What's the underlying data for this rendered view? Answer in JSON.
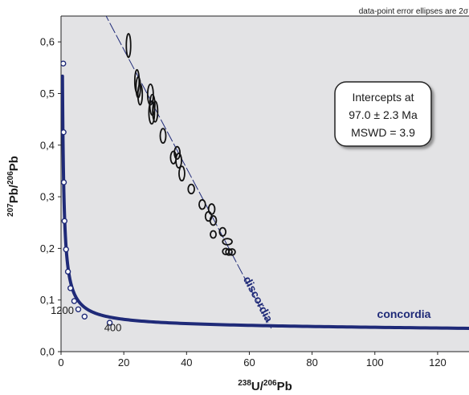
{
  "chart_data": {
    "type": "scatter",
    "note": "data-point error ellipses are 2σ",
    "xlabel_parts": {
      "sup1": "238",
      "base1": "U/",
      "sup2": "206",
      "base2": "Pb"
    },
    "ylabel_parts": {
      "sup1": "207",
      "base1": "Pb/",
      "sup2": "206",
      "base2": "Pb"
    },
    "xlim": [
      0,
      130
    ],
    "ylim": [
      0,
      0.65
    ],
    "x_ticks": [
      {
        "value": 0,
        "label": "0"
      },
      {
        "value": 20,
        "label": "20"
      },
      {
        "value": 40,
        "label": "40"
      },
      {
        "value": 60,
        "label": "60"
      },
      {
        "value": 80,
        "label": "80"
      },
      {
        "value": 100,
        "label": "100"
      },
      {
        "value": 120,
        "label": "120"
      }
    ],
    "y_ticks": [
      {
        "value": 0.0,
        "label": "0,0"
      },
      {
        "value": 0.1,
        "label": "0,1"
      },
      {
        "value": 0.2,
        "label": "0,2"
      },
      {
        "value": 0.3,
        "label": "0,3"
      },
      {
        "value": 0.4,
        "label": "0,4"
      },
      {
        "value": 0.5,
        "label": "0,5"
      },
      {
        "value": 0.6,
        "label": "0,6"
      }
    ],
    "intercept_box": {
      "line1": "Intercepts at",
      "line2": "97.0 ± 2.3 Ma",
      "line3": "MSWD = 3.9"
    },
    "concordia": {
      "label": "concordia",
      "color": "#1f2a78",
      "markers": [
        {
          "x": 0.7,
          "y": 0.558
        },
        {
          "x": 0.8,
          "y": 0.425
        },
        {
          "x": 0.9,
          "y": 0.328
        },
        {
          "x": 1.1,
          "y": 0.253
        },
        {
          "x": 1.6,
          "y": 0.198
        },
        {
          "x": 2.2,
          "y": 0.155
        },
        {
          "x": 3.0,
          "y": 0.123
        },
        {
          "x": 4.2,
          "y": 0.098
        },
        {
          "x": 5.5,
          "y": 0.082
        },
        {
          "x": 7.5,
          "y": 0.068
        },
        {
          "x": 15.5,
          "y": 0.056
        }
      ],
      "age_labels": [
        {
          "label": "1200",
          "x": 0.5,
          "y": 0.073
        },
        {
          "label": "400",
          "x": 15.5,
          "y": 0.04
        }
      ]
    },
    "discordia": {
      "label": "discordia",
      "color": "#1f2a78",
      "x1": 13.5,
      "y1": 0.66,
      "x2": 67,
      "y2": 0.045
    },
    "ellipses": [
      {
        "x": 21.5,
        "y": 0.593,
        "rx": 0.7,
        "ry": 0.023
      },
      {
        "x": 24.2,
        "y": 0.524,
        "rx": 0.7,
        "ry": 0.022
      },
      {
        "x": 24.6,
        "y": 0.512,
        "rx": 0.7,
        "ry": 0.02
      },
      {
        "x": 25.2,
        "y": 0.498,
        "rx": 0.7,
        "ry": 0.02
      },
      {
        "x": 28.5,
        "y": 0.498,
        "rx": 0.9,
        "ry": 0.02
      },
      {
        "x": 29.1,
        "y": 0.478,
        "rx": 0.8,
        "ry": 0.02
      },
      {
        "x": 28.9,
        "y": 0.463,
        "rx": 0.9,
        "ry": 0.022
      },
      {
        "x": 30.0,
        "y": 0.465,
        "rx": 0.8,
        "ry": 0.02
      },
      {
        "x": 32.5,
        "y": 0.418,
        "rx": 0.9,
        "ry": 0.014
      },
      {
        "x": 35.8,
        "y": 0.376,
        "rx": 0.9,
        "ry": 0.012
      },
      {
        "x": 37.0,
        "y": 0.385,
        "rx": 0.9,
        "ry": 0.012
      },
      {
        "x": 37.5,
        "y": 0.37,
        "rx": 0.9,
        "ry": 0.014
      },
      {
        "x": 38.5,
        "y": 0.345,
        "rx": 0.9,
        "ry": 0.014
      },
      {
        "x": 41.5,
        "y": 0.315,
        "rx": 1.0,
        "ry": 0.009
      },
      {
        "x": 45.0,
        "y": 0.285,
        "rx": 1.0,
        "ry": 0.009
      },
      {
        "x": 47.0,
        "y": 0.262,
        "rx": 1.0,
        "ry": 0.009
      },
      {
        "x": 48.0,
        "y": 0.276,
        "rx": 1.0,
        "ry": 0.01
      },
      {
        "x": 48.5,
        "y": 0.254,
        "rx": 1.0,
        "ry": 0.009
      },
      {
        "x": 48.5,
        "y": 0.227,
        "rx": 0.9,
        "ry": 0.007
      },
      {
        "x": 51.5,
        "y": 0.232,
        "rx": 1.0,
        "ry": 0.008
      },
      {
        "x": 53.0,
        "y": 0.213,
        "rx": 1.5,
        "ry": 0.006
      },
      {
        "x": 52.5,
        "y": 0.194,
        "rx": 1.0,
        "ry": 0.006
      },
      {
        "x": 53.5,
        "y": 0.193,
        "rx": 1.0,
        "ry": 0.006
      },
      {
        "x": 54.5,
        "y": 0.193,
        "rx": 1.0,
        "ry": 0.006
      }
    ],
    "colors": {
      "plot_background": "#e3e3e5",
      "curve": "#1f2a78",
      "ellipse_stroke": "#111111"
    }
  }
}
